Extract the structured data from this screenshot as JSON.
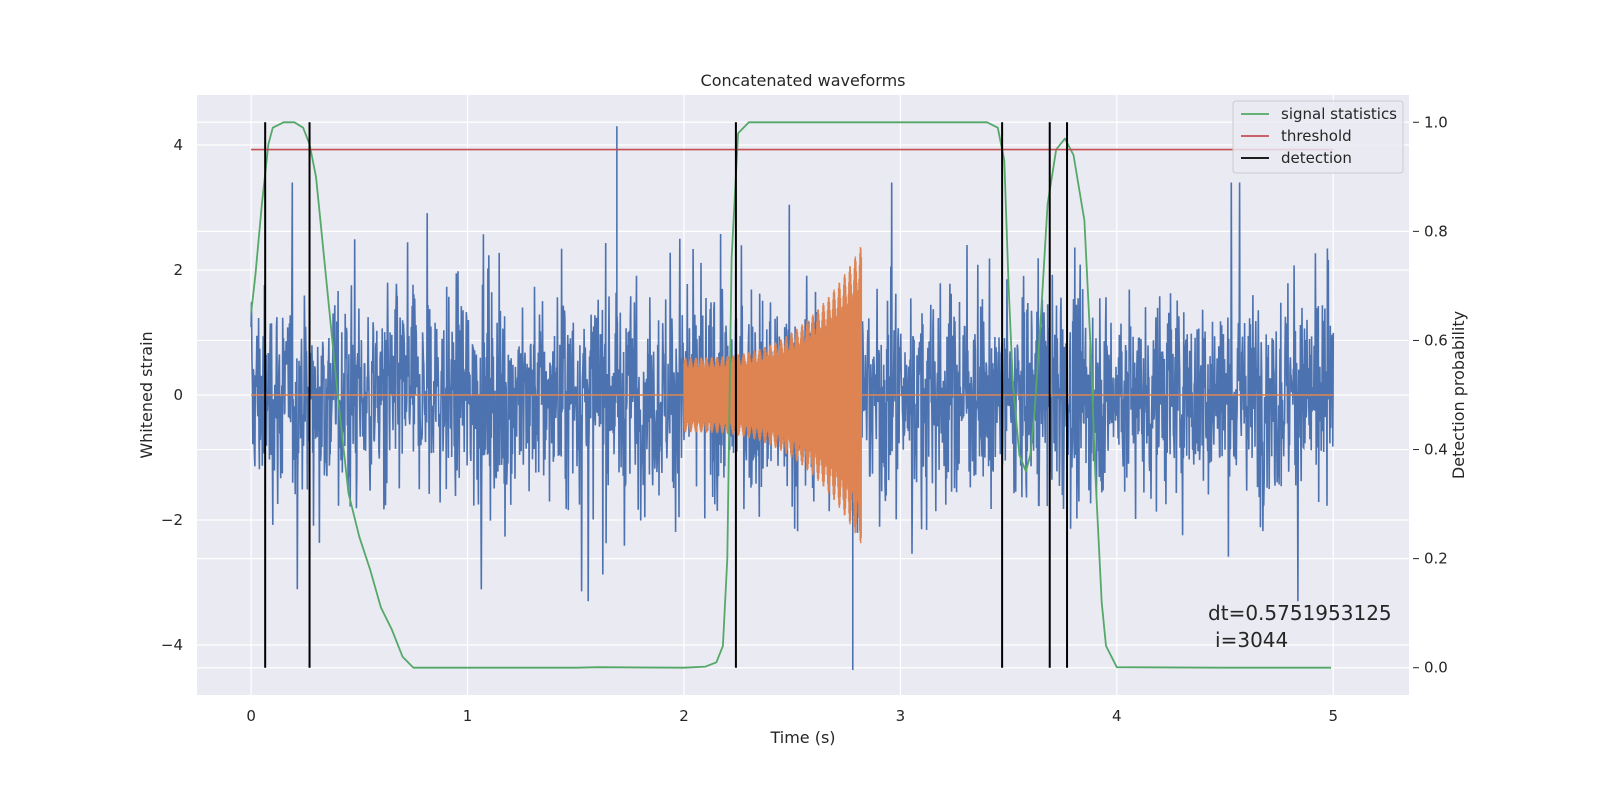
{
  "chart_data": {
    "type": "line",
    "title": "Concatenated waveforms",
    "xlabel": "Time (s)",
    "ylabel": "Whitened strain",
    "ylabel_right": "Detection probability",
    "xlim": [
      -0.25,
      5.35
    ],
    "ylim": [
      -4.8,
      4.8
    ],
    "ylim_right": [
      -0.05,
      1.05
    ],
    "x_ticks": [
      0,
      1,
      2,
      3,
      4,
      5
    ],
    "x_tick_labels": [
      "0",
      "1",
      "2",
      "3",
      "4",
      "5"
    ],
    "y_ticks": [
      4,
      2,
      0,
      -2,
      -4
    ],
    "y_tick_labels": [
      "4",
      "2",
      "0",
      "−2",
      "−4"
    ],
    "y_right_ticks": [
      1.0,
      0.8,
      0.6,
      0.4,
      0.2,
      0.0
    ],
    "y_right_tick_labels": [
      "1.0",
      "0.8",
      "0.6",
      "0.4",
      "0.2",
      "0.0"
    ],
    "grid": true,
    "legend_position": "top-right",
    "series": [
      {
        "name": "",
        "axis": "left",
        "color": "#4c72b0",
        "kind": "noise",
        "x_range": [
          0,
          5
        ],
        "typical_amplitude": 1.5,
        "peak_max": 4.3,
        "peak_min": -4.4
      },
      {
        "name": "",
        "axis": "left",
        "color": "#dd8452",
        "kind": "chirp",
        "x_range": [
          2.0,
          2.82
        ],
        "start_amplitude": 0.6,
        "end_amplitude": 2.4
      },
      {
        "name": "signal statistics",
        "axis": "right",
        "color": "#55a868",
        "x": [
          0,
          0.02,
          0.05,
          0.08,
          0.1,
          0.15,
          0.2,
          0.24,
          0.27,
          0.3,
          0.32,
          0.35,
          0.4,
          0.45,
          0.5,
          0.55,
          0.6,
          0.65,
          0.7,
          0.75,
          1.0,
          1.5,
          1.6,
          2.0,
          2.1,
          2.15,
          2.18,
          2.2,
          2.22,
          2.25,
          2.3,
          2.5,
          3.0,
          3.4,
          3.45,
          3.48,
          3.5,
          3.52,
          3.55,
          3.58,
          3.6,
          3.62,
          3.65,
          3.68,
          3.72,
          3.76,
          3.8,
          3.85,
          3.88,
          3.9,
          3.93,
          3.95,
          4.0,
          4.5,
          4.99
        ],
        "y": [
          0.65,
          0.72,
          0.85,
          0.96,
          0.99,
          1.0,
          1.0,
          0.99,
          0.96,
          0.9,
          0.82,
          0.7,
          0.5,
          0.32,
          0.24,
          0.18,
          0.11,
          0.07,
          0.02,
          0.0,
          0.0,
          0.0,
          0.001,
          0.0,
          0.002,
          0.01,
          0.04,
          0.2,
          0.75,
          0.98,
          1.0,
          1.0,
          1.0,
          1.0,
          0.99,
          0.93,
          0.7,
          0.52,
          0.39,
          0.36,
          0.39,
          0.47,
          0.65,
          0.85,
          0.95,
          0.97,
          0.94,
          0.82,
          0.58,
          0.36,
          0.12,
          0.04,
          0.001,
          0.0,
          0.0
        ]
      },
      {
        "name": "threshold",
        "axis": "right",
        "color": "#c44e52",
        "x": [
          0,
          5
        ],
        "y": [
          0.95,
          0.95
        ]
      },
      {
        "name": "detection",
        "axis": "right",
        "color": "#000000",
        "kind": "vlines",
        "x": [
          0.065,
          0.27,
          2.24,
          3.47,
          3.69,
          3.77
        ],
        "ymin": 0.0,
        "ymax": 1.0
      }
    ],
    "annotation": {
      "line1": "dt=0.5751953125",
      "line2": "i=3044",
      "x": 4.5,
      "y_right": 0.1
    }
  }
}
